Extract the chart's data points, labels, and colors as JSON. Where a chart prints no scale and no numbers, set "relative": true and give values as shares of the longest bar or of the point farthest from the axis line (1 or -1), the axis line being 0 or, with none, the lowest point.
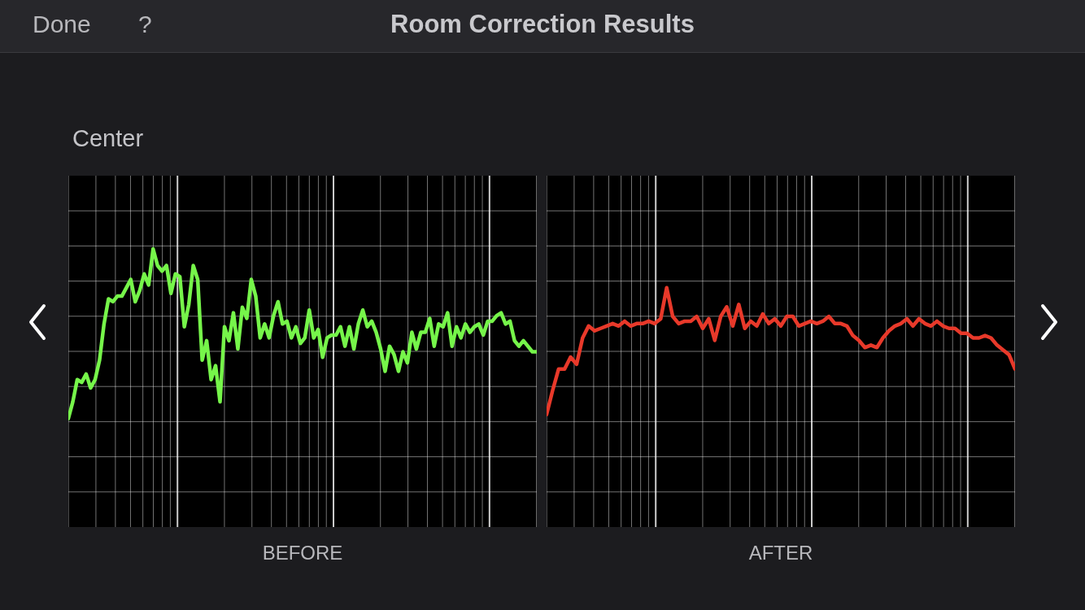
{
  "chart_data": [
    {
      "type": "line",
      "title": "Room Correction Results",
      "subtitle": "Center",
      "annotations": [
        "Done",
        "?"
      ],
      "xlabel": "BEFORE",
      "relative": true,
      "grid": true,
      "categories": [
        null,
        null,
        null,
        null,
        null,
        null,
        null,
        null,
        null,
        null,
        null,
        null,
        null,
        null,
        null,
        null,
        null,
        null,
        null,
        null,
        null,
        null,
        null,
        null,
        null,
        null,
        null,
        null,
        null,
        null,
        null,
        null,
        null,
        null,
        null,
        null,
        null,
        null,
        null,
        null,
        null,
        null,
        null,
        null,
        null,
        null,
        null,
        null,
        null,
        null,
        null,
        null,
        null,
        null,
        null,
        null,
        null,
        null,
        null,
        null,
        null,
        null,
        null,
        null,
        null,
        null,
        null,
        null,
        null,
        null,
        null,
        null,
        null,
        null,
        null,
        null,
        null,
        null,
        null,
        null,
        null,
        null,
        null,
        null,
        null,
        null,
        null,
        null,
        null,
        null,
        null,
        null,
        null,
        null,
        null,
        null,
        null,
        null,
        null,
        null,
        null,
        null,
        null,
        null,
        null,
        null
      ],
      "series": [
        {
          "color": "#76f54a",
          "values": [
            0.39,
            0.45,
            0.53,
            0.52,
            0.55,
            0.5,
            0.53,
            0.6,
            0.73,
            0.82,
            0.81,
            0.83,
            0.83,
            0.86,
            0.89,
            0.81,
            0.85,
            0.91,
            0.87,
            1,
            0.94,
            0.92,
            0.94,
            0.84,
            0.91,
            0.9,
            0.72,
            0.8,
            0.94,
            0.89,
            0.6,
            0.67,
            0.53,
            0.58,
            0.45,
            0.72,
            0.67,
            0.77,
            0.64,
            0.79,
            0.75,
            0.89,
            0.83,
            0.68,
            0.73,
            0.68,
            0.76,
            0.81,
            0.73,
            0.74,
            0.68,
            0.72,
            0.66,
            0.68,
            0.78,
            0.68,
            0.71,
            0.61,
            0.68,
            0.69,
            0.69,
            0.72,
            0.65,
            0.72,
            0.64,
            0.73,
            0.78,
            0.72,
            0.74,
            0.7,
            0.64,
            0.56,
            0.65,
            0.62,
            0.56,
            0.63,
            0.59,
            0.7,
            0.64,
            0.7,
            0.7,
            0.75,
            0.65,
            0.73,
            0.72,
            0.77,
            0.65,
            0.72,
            0.68,
            0.73,
            0.7,
            0.72,
            0.73,
            0.69,
            0.74,
            0.74,
            0.76,
            0.77,
            0.73,
            0.74,
            0.67,
            0.65,
            0.67,
            0.65,
            0.63,
            0.63
          ]
        }
      ]
    },
    {
      "type": "line",
      "xlabel": "AFTER",
      "relative": true,
      "grid": true,
      "categories": [
        null,
        null,
        null,
        null,
        null,
        null,
        null,
        null,
        null,
        null,
        null,
        null,
        null,
        null,
        null,
        null,
        null,
        null,
        null,
        null,
        null,
        null,
        null,
        null,
        null,
        null,
        null,
        null,
        null,
        null,
        null,
        null,
        null,
        null,
        null,
        null,
        null,
        null,
        null,
        null,
        null,
        null,
        null,
        null,
        null,
        null,
        null,
        null,
        null,
        null,
        null,
        null,
        null,
        null,
        null,
        null,
        null,
        null,
        null,
        null,
        null,
        null,
        null,
        null,
        null,
        null,
        null,
        null,
        null,
        null,
        null,
        null,
        null,
        null,
        null,
        null,
        null,
        null,
        null
      ],
      "series": [
        {
          "color": "#e8392a",
          "values": [
            0.47,
            0.57,
            0.66,
            0.66,
            0.71,
            0.68,
            0.79,
            0.84,
            0.82,
            0.83,
            0.84,
            0.85,
            0.84,
            0.86,
            0.84,
            0.85,
            0.85,
            0.86,
            0.85,
            0.87,
            1,
            0.88,
            0.85,
            0.86,
            0.86,
            0.88,
            0.83,
            0.87,
            0.78,
            0.88,
            0.92,
            0.84,
            0.93,
            0.83,
            0.86,
            0.84,
            0.89,
            0.85,
            0.87,
            0.84,
            0.88,
            0.88,
            0.84,
            0.85,
            0.86,
            0.85,
            0.86,
            0.88,
            0.85,
            0.85,
            0.84,
            0.8,
            0.78,
            0.75,
            0.76,
            0.75,
            0.79,
            0.82,
            0.84,
            0.85,
            0.87,
            0.84,
            0.87,
            0.85,
            0.84,
            0.86,
            0.84,
            0.83,
            0.83,
            0.81,
            0.81,
            0.79,
            0.79,
            0.8,
            0.79,
            0.76,
            0.74,
            0.72,
            0.66
          ]
        }
      ]
    }
  ]
}
